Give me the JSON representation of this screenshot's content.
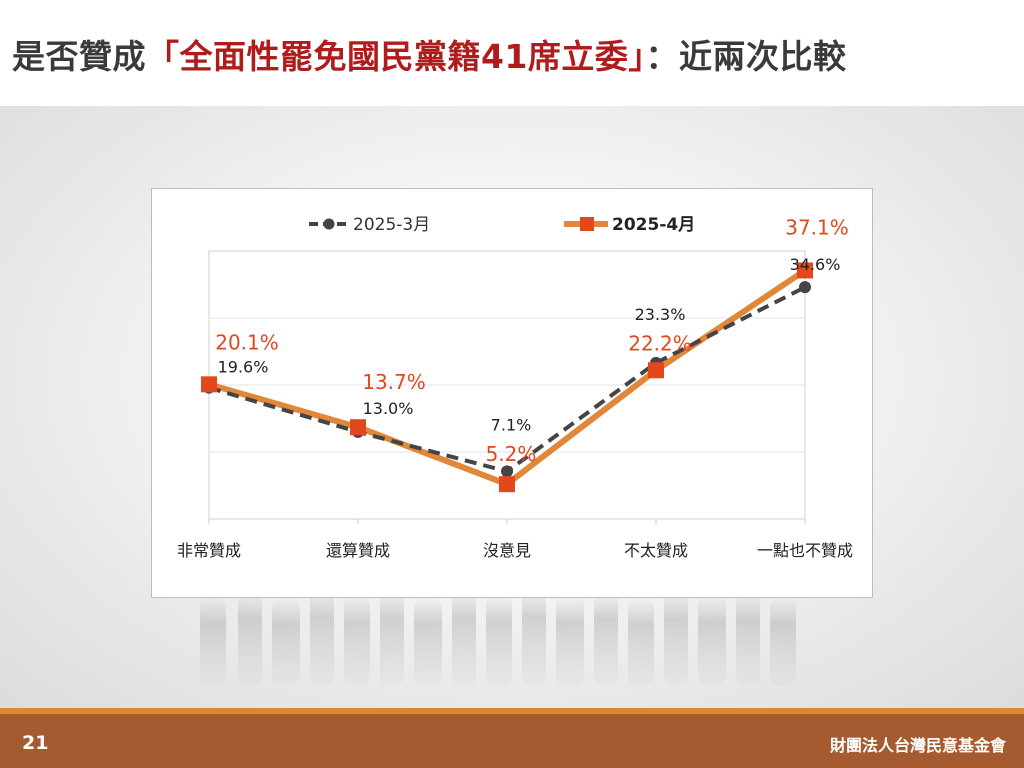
{
  "slide": {
    "title_prefix": "是否贊成",
    "title_highlight": "「全面性罷免國民黨籍41席立委」",
    "title_suffix": "：近兩次比較",
    "page_number": "21",
    "organization": "財團法人台灣民意基金會"
  },
  "chart_data": {
    "type": "line",
    "title": "",
    "xlabel": "",
    "ylabel": "",
    "categories": [
      "非常贊成",
      "還算贊成",
      "沒意見",
      "不太贊成",
      "一點也不贊成"
    ],
    "ylim": [
      0,
      40
    ],
    "grid": true,
    "legend": "top",
    "series": [
      {
        "name": "2025-3月",
        "values": [
          19.6,
          13.0,
          7.1,
          23.3,
          34.6
        ],
        "labels": [
          "19.6%",
          "13.0%",
          "7.1%",
          "23.3%",
          "34.6%"
        ],
        "color": "#444444",
        "style": "dashed",
        "marker": "circle"
      },
      {
        "name": "2025-4月",
        "values": [
          20.1,
          13.7,
          5.2,
          22.2,
          37.1
        ],
        "labels": [
          "20.1%",
          "13.7%",
          "5.2%",
          "22.2%",
          "37.1%"
        ],
        "color": "#e0873a",
        "marker_color": "#e2481b",
        "label_color": "#e2481b",
        "style": "solid",
        "marker": "square"
      }
    ]
  }
}
